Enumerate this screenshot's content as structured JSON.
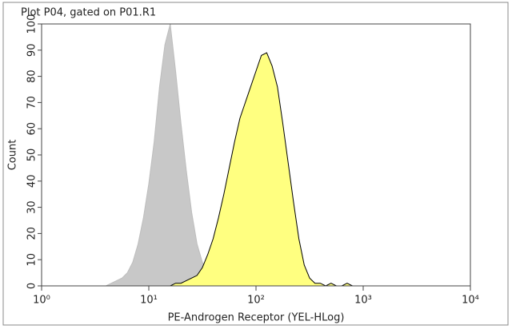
{
  "chart_data": {
    "type": "area",
    "title": "Plot P04, gated on P01.R1",
    "x_label": "PE-Androgen Receptor (YEL-HLog)",
    "y_label": "Count",
    "x_log": true,
    "xlim": [
      1,
      10000
    ],
    "xticks": [
      {
        "value": 1,
        "label": "10⁰"
      },
      {
        "value": 10,
        "label": "10¹"
      },
      {
        "value": 100,
        "label": "10²"
      },
      {
        "value": 1000,
        "label": "10³"
      },
      {
        "value": 10000,
        "label": "10⁴"
      }
    ],
    "ylim": [
      0,
      100
    ],
    "yticks": [
      0,
      10,
      20,
      30,
      40,
      50,
      60,
      70,
      80,
      90,
      100
    ],
    "x": [
      3.16,
      3.55,
      3.98,
      4.47,
      5.01,
      5.62,
      6.31,
      7.08,
      7.94,
      8.91,
      10,
      11.22,
      12.59,
      14.13,
      15.85,
      17.78,
      19.95,
      22.39,
      25.12,
      28.18,
      31.62,
      35.48,
      39.81,
      44.67,
      50.12,
      56.23,
      63.1,
      70.79,
      79.43,
      89.13,
      100,
      112.2,
      125.9,
      141.3,
      158.5,
      177.8,
      199.5,
      223.9,
      251.2,
      281.8,
      316.2,
      354.8,
      398.1,
      446.7,
      501.2,
      562.3,
      631,
      707.9,
      794.3,
      891.3,
      1000
    ],
    "series": [
      {
        "color": "#c8c8c8",
        "outline": "#bdbdbd",
        "values": [
          0,
          0,
          0,
          1,
          2,
          3,
          5,
          9,
          16,
          26,
          39,
          55,
          76,
          92,
          100,
          82,
          62,
          44,
          28,
          16,
          9,
          5,
          2,
          1,
          0,
          0,
          0,
          0,
          0,
          0,
          0,
          0,
          0,
          0,
          0,
          0,
          0,
          0,
          0,
          0,
          0,
          0,
          0,
          0,
          0,
          0,
          0,
          0,
          0,
          0,
          0
        ]
      },
      {
        "color": "#ffff80",
        "outline": "#000000",
        "values": [
          0,
          0,
          0,
          0,
          0,
          0,
          0,
          0,
          0,
          0,
          0,
          0,
          0,
          0,
          0,
          1,
          1,
          2,
          3,
          4,
          7,
          12,
          18,
          26,
          35,
          45,
          55,
          64,
          70,
          76,
          82,
          88,
          89,
          84,
          76,
          62,
          47,
          32,
          18,
          8,
          3,
          1,
          1,
          0,
          1,
          0,
          0,
          1,
          0,
          0,
          0
        ]
      }
    ]
  }
}
